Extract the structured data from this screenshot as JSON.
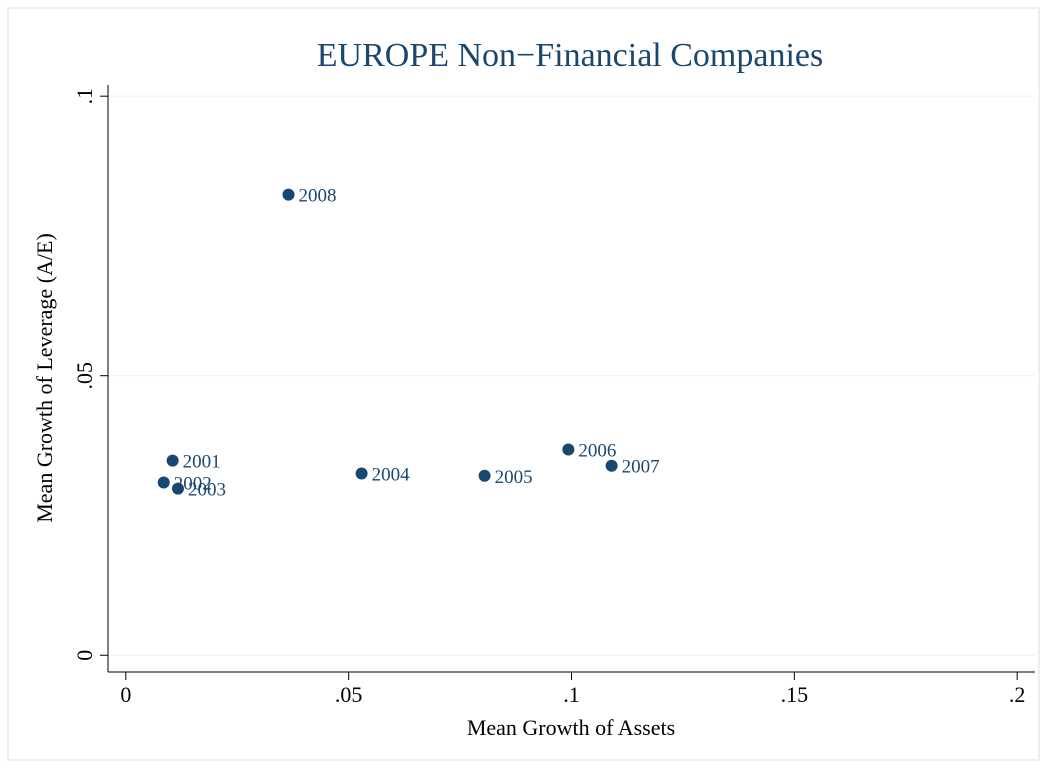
{
  "chart_data": {
    "type": "scatter",
    "title": "EUROPE Non−Financial Companies",
    "x_label": "Mean Growth of Assets",
    "y_label": "Mean Growth of Leverage (A/E)",
    "x": [
      0.0365,
      0.0105,
      0.0085,
      0.0117,
      0.0529,
      0.0805,
      0.0993,
      0.109
    ],
    "y": [
      0.0824,
      0.0348,
      0.0309,
      0.0298,
      0.0325,
      0.0321,
      0.0368,
      0.0339
    ],
    "labels": [
      "2008",
      "2001",
      "2002",
      "2003",
      "2004",
      "2005",
      "2006",
      "2007"
    ],
    "color": "#1a476f",
    "xlim": [
      -0.004,
      0.204
    ],
    "ylim": [
      -0.003,
      0.102
    ],
    "xticks": [
      0,
      {
        "value": 0.05,
        "label": ".05"
      },
      {
        "value": 0.1,
        "label": ".1"
      },
      {
        "value": 0.15,
        "label": ".15"
      },
      {
        "value": 0.2,
        "label": ".2"
      }
    ],
    "yticks": [
      0,
      {
        "value": 0.05,
        "label": ".05"
      },
      {
        "value": 0.1,
        "label": ".1"
      }
    ],
    "grid": true
  }
}
